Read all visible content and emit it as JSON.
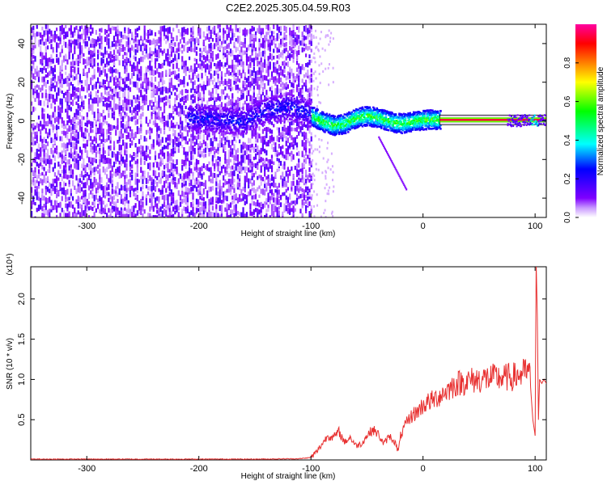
{
  "title": "C2E2.2025.305.04.59.R03",
  "colorbar": {
    "label": "Normalized spectral amplitude",
    "range": [
      0,
      1
    ],
    "ticks": [
      "0.0",
      "0.2",
      "0.4",
      "0.6",
      "0.8"
    ],
    "tick_values": [
      0,
      0.2,
      0.4,
      0.6,
      0.8
    ],
    "stops": [
      "#ffffff",
      "#7f00ff",
      "#0000ff",
      "#00ffff",
      "#00ff00",
      "#ffff00",
      "#ff8000",
      "#ff0000",
      "#ff00a0"
    ]
  },
  "chart_data": [
    {
      "type": "heatmap",
      "title": "C2E2.2025.305.04.59.R03",
      "xlabel": "Height of straight line (km)",
      "ylabel": "Frequency (Hz)",
      "xlim": [
        -350,
        110
      ],
      "ylim": [
        -50,
        50
      ],
      "xticks": [
        -300,
        -200,
        -100,
        0,
        100
      ],
      "xtick_labels": [
        "-300",
        "-200",
        "-100",
        "0",
        "100"
      ],
      "yticks": [
        -40,
        -20,
        0,
        20,
        40
      ],
      "ytick_labels": [
        "-40",
        "-20",
        "0",
        "20",
        "40"
      ],
      "grid": false,
      "colormap": "white-purple-blue-cyan-green-yellow-red-magenta",
      "value_range": [
        0,
        1
      ],
      "regions": [
        {
          "x": [
            -350,
            -100
          ],
          "y": [
            -50,
            50
          ],
          "amplitude_range": [
            0.0,
            0.15
          ]
        },
        {
          "x": [
            -210,
            -100
          ],
          "y": [
            -10,
            8
          ],
          "amplitude_range": [
            0.1,
            0.3
          ]
        },
        {
          "x": [
            -100,
            15
          ],
          "y": [
            -10,
            10
          ],
          "amplitude_range": [
            0.2,
            0.6
          ]
        },
        {
          "x": [
            15,
            110
          ],
          "y": [
            0,
            1
          ],
          "amplitude_range": [
            0.8,
            1.0
          ]
        }
      ],
      "ridge_x": [
        -200,
        -180,
        -160,
        -140,
        -120,
        -110,
        -100,
        -90,
        -80,
        -70,
        -60,
        -50,
        -40,
        -30,
        -20,
        -10,
        0,
        10,
        20,
        40,
        60,
        80,
        100,
        110
      ],
      "ridge_freq": [
        2,
        1,
        0,
        6,
        8,
        6,
        3,
        0,
        -2,
        -1,
        2,
        3,
        2,
        0,
        -1,
        0,
        1,
        1,
        1,
        1,
        1,
        1,
        1,
        1
      ]
    },
    {
      "type": "line",
      "xlabel": "Height of straight line (km)",
      "ylabel": "SNR (10 * v/v)",
      "y_scale_note": "(x10⁴)",
      "xlim": [
        -350,
        110
      ],
      "ylim": [
        0,
        2.4
      ],
      "xticks": [
        -300,
        -200,
        -100,
        0,
        100
      ],
      "xtick_labels": [
        "-300",
        "-200",
        "-100",
        "0",
        "100"
      ],
      "yticks": [
        0.5,
        1.0,
        1.5,
        2.0
      ],
      "ytick_labels": [
        "0.5",
        "1.0",
        "1.5",
        "2.0"
      ],
      "grid": false,
      "series": [
        {
          "color": "#e83030",
          "x": [
            -350,
            -300,
            -250,
            -200,
            -150,
            -110,
            -100,
            -95,
            -90,
            -85,
            -80,
            -75,
            -70,
            -65,
            -60,
            -55,
            -50,
            -45,
            -40,
            -35,
            -30,
            -25,
            -22,
            -20,
            -15,
            -10,
            -5,
            0,
            5,
            10,
            15,
            20,
            25,
            30,
            40,
            50,
            60,
            70,
            80,
            85,
            90,
            95,
            98,
            100,
            101,
            102,
            103,
            104,
            106,
            108,
            110
          ],
          "y": [
            0.01,
            0.01,
            0.01,
            0.01,
            0.01,
            0.015,
            0.03,
            0.1,
            0.2,
            0.3,
            0.28,
            0.35,
            0.22,
            0.28,
            0.18,
            0.2,
            0.3,
            0.38,
            0.32,
            0.2,
            0.3,
            0.22,
            0.1,
            0.3,
            0.45,
            0.55,
            0.6,
            0.68,
            0.72,
            0.75,
            0.8,
            0.85,
            0.9,
            0.95,
            0.98,
            1.0,
            1.02,
            1.02,
            1.03,
            1.05,
            1.08,
            1.1,
            0.5,
            0.3,
            2.45,
            1.8,
            0.5,
            1.0,
            0.95,
            1.0,
            0.95
          ]
        }
      ]
    }
  ]
}
